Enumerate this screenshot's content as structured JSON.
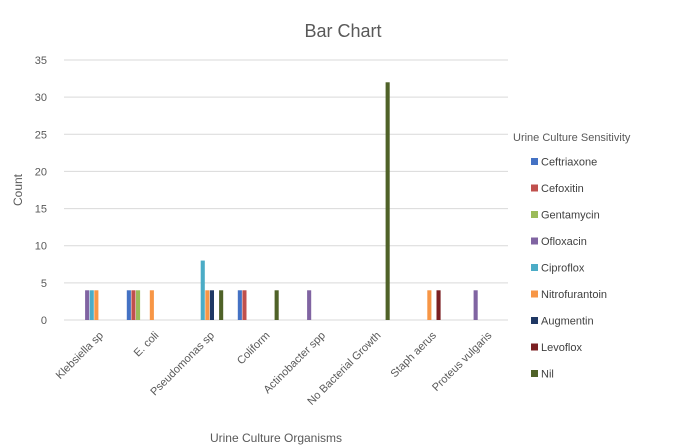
{
  "chart_data": {
    "type": "bar",
    "title": "Bar Chart",
    "xlabel": "Urine Culture Organisms",
    "ylabel": "Count",
    "ylim": [
      0,
      35
    ],
    "yticks": [
      0,
      5,
      10,
      15,
      20,
      25,
      30,
      35
    ],
    "grid": true,
    "legend_title": "Urine Culture Sensitivity",
    "legend_position": "right",
    "categories": [
      "Klebsiella sp",
      "E. coli",
      "Pseudomonas sp",
      "Coliform",
      "Actinobacter spp",
      "No Bacterial Growth",
      "Staph aerus",
      "Proteus vulgaris"
    ],
    "series": [
      {
        "name": "Ceftriaxone",
        "color": "#4472c4",
        "values": [
          0,
          4,
          0,
          4,
          0,
          0,
          0,
          0
        ]
      },
      {
        "name": "Cefoxitin",
        "color": "#c0504d",
        "values": [
          0,
          4,
          0,
          4,
          0,
          0,
          0,
          0
        ]
      },
      {
        "name": "Gentamycin",
        "color": "#9bbb59",
        "values": [
          0,
          4,
          0,
          0,
          0,
          0,
          0,
          0
        ]
      },
      {
        "name": "Ofloxacin",
        "color": "#8064a2",
        "values": [
          4,
          0,
          0,
          0,
          4,
          0,
          0,
          4
        ]
      },
      {
        "name": "Ciproflox",
        "color": "#4bacc6",
        "values": [
          4,
          0,
          8,
          0,
          0,
          0,
          0,
          0
        ]
      },
      {
        "name": "Nitrofurantoin",
        "color": "#f79646",
        "values": [
          4,
          4,
          4,
          0,
          0,
          0,
          4,
          0
        ]
      },
      {
        "name": "Augmentin",
        "color": "#1f3864",
        "values": [
          0,
          0,
          4,
          0,
          0,
          0,
          0,
          0
        ]
      },
      {
        "name": "Levoflox",
        "color": "#7b1f22",
        "values": [
          0,
          0,
          0,
          0,
          0,
          0,
          4,
          0
        ]
      },
      {
        "name": "Nil",
        "color": "#4f6228",
        "values": [
          0,
          0,
          4,
          4,
          0,
          32,
          0,
          0
        ]
      }
    ]
  }
}
